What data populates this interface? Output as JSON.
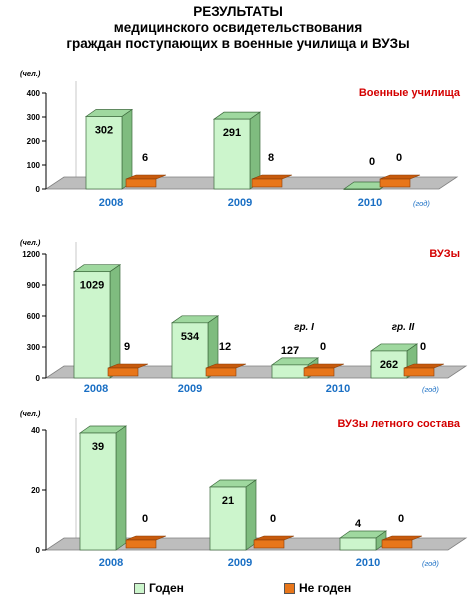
{
  "header": {
    "line1": "РЕЗУЛЬТАТЫ",
    "line2": "медицинского освидетельствования",
    "line3": "граждан поступающих в военные училища и ВУЗы"
  },
  "legend": {
    "fit": "Годен",
    "unfit": "Не годен"
  },
  "colors": {
    "fit_front": "#ccf5cc",
    "fit_top": "#9fd89f",
    "fit_side": "#7fbc7f",
    "unfit_front": "#e8761a",
    "unfit_top": "#c75a0c",
    "floor": "#bdbdbd",
    "floor_edge": "#808080",
    "title_red": "#d40000",
    "year_blue": "#1a6fc4"
  },
  "chart_data": [
    {
      "type": "bar",
      "title": "Военные училища",
      "ylabel": "(чел.)",
      "xlabel": "(год)",
      "ylim": [
        0,
        400
      ],
      "yticks": [
        0,
        100,
        200,
        300,
        400
      ],
      "categories": [
        "2008",
        "2009",
        "2010"
      ],
      "series": [
        {
          "name": "Годен",
          "values": [
            302,
            291,
            0
          ]
        },
        {
          "name": "Не годен",
          "values": [
            6,
            8,
            0
          ]
        }
      ]
    },
    {
      "type": "bar",
      "title": "ВУЗы",
      "ylabel": "(чел.)",
      "xlabel": "(год)",
      "ylim": [
        0,
        1200
      ],
      "yticks": [
        0,
        300,
        600,
        900,
        1200
      ],
      "categories": [
        "2008",
        "2009",
        "2010 гр. I",
        "2010 гр. II"
      ],
      "category_labels": [
        "2008",
        "2009",
        "2010"
      ],
      "group_labels": [
        "",
        "",
        "гр. I",
        "гр. II"
      ],
      "series": [
        {
          "name": "Годен",
          "values": [
            1029,
            534,
            127,
            262
          ]
        },
        {
          "name": "Не годен",
          "values": [
            9,
            12,
            0,
            0
          ]
        }
      ]
    },
    {
      "type": "bar",
      "title": "ВУЗы летного состава",
      "ylabel": "(чел.)",
      "xlabel": "(год)",
      "ylim": [
        0,
        40
      ],
      "yticks": [
        0,
        20,
        40
      ],
      "categories": [
        "2008",
        "2009",
        "2010"
      ],
      "series": [
        {
          "name": "Годен",
          "values": [
            39,
            21,
            4
          ]
        },
        {
          "name": "Не годен",
          "values": [
            0,
            0,
            0
          ]
        }
      ]
    }
  ]
}
